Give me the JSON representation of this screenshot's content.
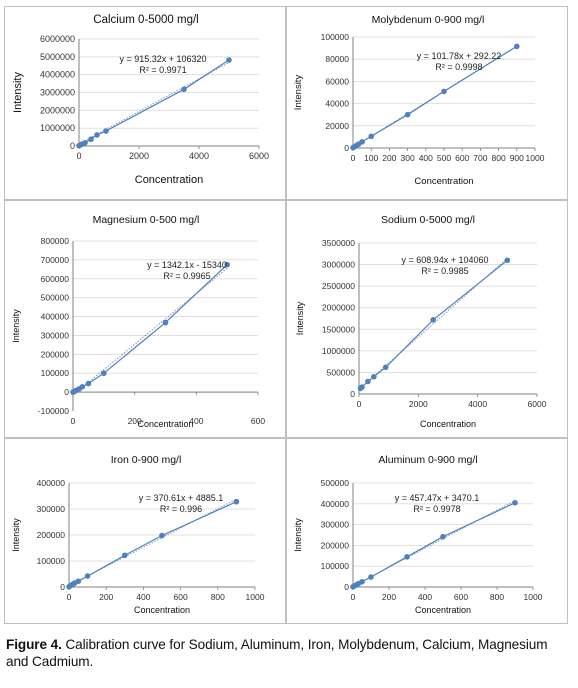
{
  "caption": {
    "label": "Figure 4.",
    "text": "Calibration curve for Sodium, Aluminum, Iron, Molybdenum, Calcium, Magnesium and Cadmium."
  },
  "colors": {
    "series": "#4f81bd",
    "grid": "#d9d9d9",
    "axis": "#808080"
  },
  "chart_data": [
    {
      "type": "scatter",
      "title": "Calcium 0-5000 mg/l",
      "xlabel": "Concentration",
      "ylabel": "Intensity",
      "xlim": [
        0,
        6000
      ],
      "xticks": [
        0,
        2000,
        4000,
        6000
      ],
      "ylim": [
        0,
        6000000
      ],
      "yticks": [
        0,
        1000000,
        2000000,
        3000000,
        4000000,
        5000000,
        6000000
      ],
      "x": [
        0,
        50,
        100,
        200,
        400,
        600,
        900,
        3500,
        5000
      ],
      "y": [
        20000,
        60000,
        110000,
        180000,
        380000,
        620000,
        840000,
        3180000,
        4820000
      ],
      "trendline": {
        "slope": 915.32,
        "intercept": 106320
      },
      "equation": "y = 915.32x + 106320",
      "r2": "R² = 0.9971",
      "grid": true
    },
    {
      "type": "scatter",
      "title": "Molybdenum 0-900 mg/l",
      "xlabel": "Concentration",
      "ylabel": "Intensity",
      "xlim": [
        0,
        1000
      ],
      "xticks": [
        0,
        100,
        200,
        300,
        400,
        500,
        600,
        700,
        800,
        900,
        1000
      ],
      "ylim": [
        0,
        100000
      ],
      "yticks": [
        0,
        20000,
        40000,
        60000,
        80000,
        100000
      ],
      "x": [
        0,
        10,
        20,
        30,
        50,
        100,
        300,
        500,
        900
      ],
      "y": [
        300,
        1300,
        2300,
        3400,
        5500,
        10500,
        30000,
        51000,
        91500
      ],
      "trendline": {
        "slope": 101.78,
        "intercept": 292.22
      },
      "equation": "y = 101.78x + 292.22",
      "r2": "R² = 0.9998",
      "grid": true
    },
    {
      "type": "scatter",
      "title": "Magnesium 0-500 mg/l",
      "xlabel": "Concentration",
      "ylabel": "Intensity",
      "xlim": [
        0,
        600
      ],
      "xticks": [
        0,
        200,
        400,
        600
      ],
      "ylim": [
        -100000,
        800000
      ],
      "yticks": [
        -100000,
        0,
        100000,
        200000,
        300000,
        400000,
        500000,
        600000,
        700000,
        800000
      ],
      "x": [
        0,
        5,
        10,
        20,
        30,
        50,
        100,
        300,
        500
      ],
      "y": [
        0,
        4000,
        9000,
        17000,
        28000,
        45000,
        100000,
        368000,
        675000
      ],
      "trendline": {
        "slope": 1342.1,
        "intercept": -15340
      },
      "equation": "y = 1342.1x - 15340",
      "r2": "R² = 0.9965",
      "grid": true
    },
    {
      "type": "scatter",
      "title": "Sodium 0-5000 mg/l",
      "xlabel": "Concentration",
      "ylabel": "Intensity",
      "xlim": [
        0,
        6000
      ],
      "xticks": [
        0,
        2000,
        4000,
        6000
      ],
      "ylim": [
        0,
        3500000
      ],
      "yticks": [
        0,
        500000,
        1000000,
        1500000,
        2000000,
        2500000,
        3000000,
        3500000
      ],
      "x": [
        50,
        100,
        300,
        500,
        900,
        2500,
        5000
      ],
      "y": [
        130000,
        160000,
        290000,
        400000,
        620000,
        1720000,
        3100000
      ],
      "trendline": {
        "slope": 608.94,
        "intercept": 104060
      },
      "equation": "y = 608.94x + 104060",
      "r2": "R² = 0.9985",
      "grid": true
    },
    {
      "type": "scatter",
      "title": "Iron 0-900 mg/l",
      "xlabel": "Concentration",
      "ylabel": "Intensity",
      "xlim": [
        0,
        1000
      ],
      "xticks": [
        0,
        200,
        400,
        600,
        800,
        1000
      ],
      "ylim": [
        0,
        400000
      ],
      "yticks": [
        0,
        100000,
        200000,
        300000,
        400000
      ],
      "x": [
        0,
        10,
        20,
        30,
        50,
        100,
        300,
        500,
        900
      ],
      "y": [
        1000,
        6000,
        10000,
        15000,
        22000,
        42000,
        122000,
        198000,
        328000
      ],
      "trendline": {
        "slope": 370.61,
        "intercept": 4885.1
      },
      "equation": "y = 370.61x + 4885.1",
      "r2": "R² = 0.996",
      "grid": true
    },
    {
      "type": "scatter",
      "title": "Aluminum 0-900 mg/l",
      "xlabel": "Concentration",
      "ylabel": "Intensity",
      "xlim": [
        0,
        1000
      ],
      "xticks": [
        0,
        200,
        400,
        600,
        800,
        1000
      ],
      "ylim": [
        0,
        500000
      ],
      "yticks": [
        0,
        100000,
        200000,
        300000,
        400000,
        500000
      ],
      "x": [
        0,
        10,
        20,
        30,
        50,
        100,
        300,
        500,
        900
      ],
      "y": [
        1000,
        6000,
        11000,
        16000,
        25000,
        48000,
        145000,
        242000,
        405000
      ],
      "trendline": {
        "slope": 457.47,
        "intercept": 3470.1
      },
      "equation": "y = 457.47x + 3470.1",
      "r2": "R² = 0.9978",
      "grid": true
    }
  ]
}
